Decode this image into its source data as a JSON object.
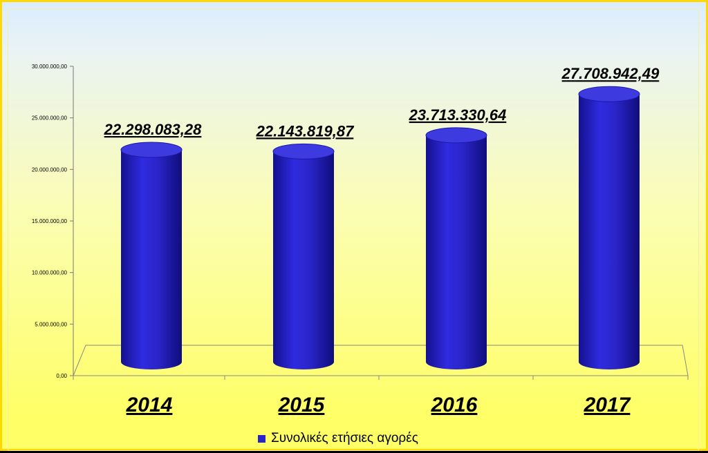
{
  "chart_data": {
    "type": "bar",
    "categories": [
      "2014",
      "2015",
      "2016",
      "2017"
    ],
    "series": [
      {
        "name": "Συνολικές ετήσιες αγορές",
        "values": [
          22298083.28,
          22143819.87,
          23713330.64,
          27708942.49
        ],
        "data_labels": [
          "22.298.083,28",
          "22.143.819,87",
          "23.713.330,64",
          "27.708.942,49"
        ]
      }
    ],
    "ylim": [
      0,
      30000000
    ],
    "yticks": [
      0,
      5000000,
      10000000,
      15000000,
      20000000,
      25000000,
      30000000
    ],
    "ytick_labels": [
      "0,00",
      "5.000.000,00",
      "10.000.000,00",
      "15.000.000,00",
      "20.000.000,00",
      "25.000.000,00",
      "30.000.000,00"
    ],
    "legend_position": "bottom",
    "grid": false,
    "style": "3d-cylinder",
    "colors": {
      "bar": "#2a25c9",
      "bar_top": "#3d3ae0"
    }
  }
}
